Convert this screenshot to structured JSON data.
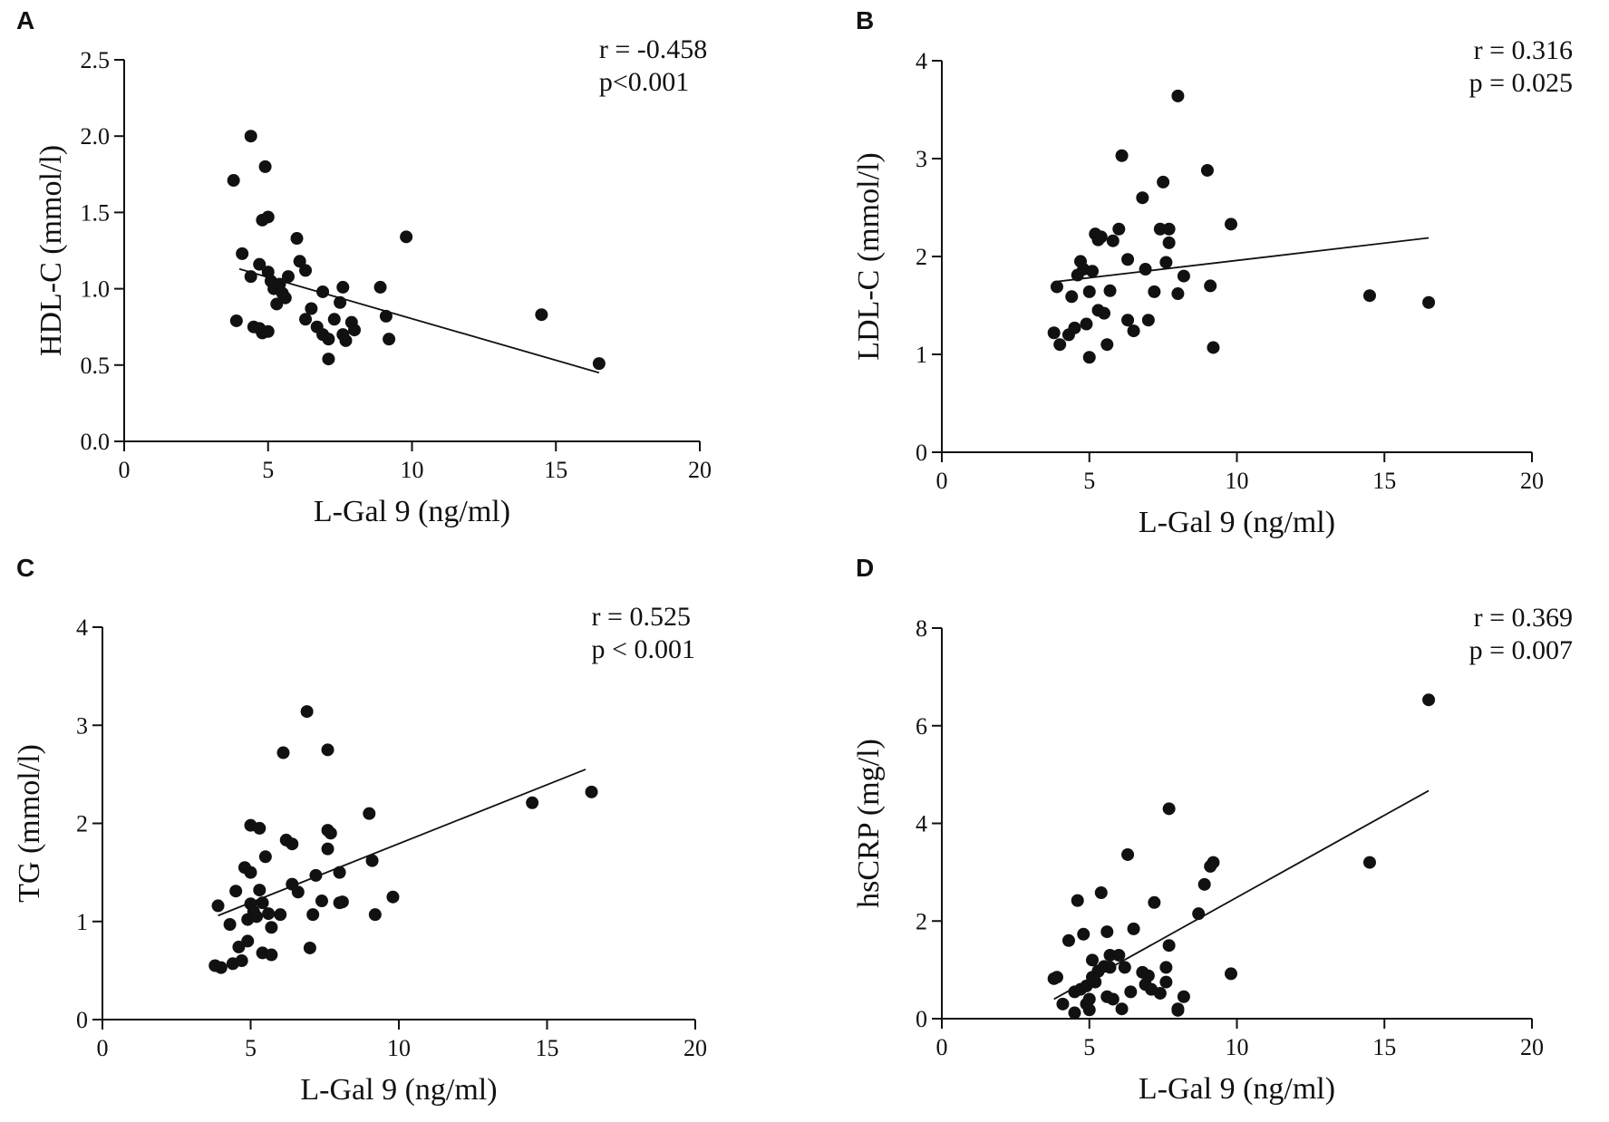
{
  "chart_data": [
    {
      "type": "scatter",
      "panel": "A",
      "xlabel": "L-Gal 9 (ng/ml)",
      "ylabel": "HDL-C (mmol/l)",
      "xlim": [
        0,
        20
      ],
      "ylim": [
        0,
        2.5
      ],
      "xticks": [
        "0",
        "5",
        "10",
        "15",
        "20"
      ],
      "yticks": [
        "0.0",
        "0.5",
        "1.0",
        "1.5",
        "2.0",
        "2.5"
      ],
      "stats": [
        "r = -0.458",
        "p<0.001"
      ],
      "regression": [
        [
          4.0,
          1.13
        ],
        [
          16.5,
          0.45
        ]
      ],
      "points": [
        [
          3.8,
          1.71
        ],
        [
          3.9,
          0.79
        ],
        [
          4.1,
          1.23
        ],
        [
          4.4,
          2.0
        ],
        [
          4.4,
          1.08
        ],
        [
          4.5,
          0.75
        ],
        [
          4.7,
          1.16
        ],
        [
          4.7,
          0.74
        ],
        [
          4.8,
          1.45
        ],
        [
          4.8,
          0.71
        ],
        [
          4.9,
          1.8
        ],
        [
          5.0,
          1.47
        ],
        [
          5.0,
          1.11
        ],
        [
          5.0,
          0.72
        ],
        [
          5.1,
          1.05
        ],
        [
          5.2,
          1.0
        ],
        [
          5.3,
          0.9
        ],
        [
          5.4,
          1.03
        ],
        [
          5.5,
          0.97
        ],
        [
          5.6,
          0.94
        ],
        [
          5.7,
          1.08
        ],
        [
          6.0,
          1.33
        ],
        [
          6.1,
          1.18
        ],
        [
          6.3,
          1.12
        ],
        [
          6.3,
          0.8
        ],
        [
          6.5,
          0.87
        ],
        [
          6.7,
          0.75
        ],
        [
          6.9,
          0.98
        ],
        [
          6.9,
          0.7
        ],
        [
          7.1,
          0.67
        ],
        [
          7.1,
          0.54
        ],
        [
          7.3,
          0.8
        ],
        [
          7.5,
          0.91
        ],
        [
          7.6,
          0.7
        ],
        [
          7.6,
          1.01
        ],
        [
          7.7,
          0.66
        ],
        [
          7.9,
          0.78
        ],
        [
          8.0,
          0.73
        ],
        [
          8.9,
          1.01
        ],
        [
          9.1,
          0.82
        ],
        [
          9.2,
          0.67
        ],
        [
          9.8,
          1.34
        ],
        [
          14.5,
          0.83
        ],
        [
          16.5,
          0.51
        ]
      ]
    },
    {
      "type": "scatter",
      "panel": "B",
      "xlabel": "L-Gal 9 (ng/ml)",
      "ylabel": "LDL-C (mmol/l)",
      "xlim": [
        0,
        20
      ],
      "ylim": [
        0,
        4
      ],
      "xticks": [
        "0",
        "5",
        "10",
        "15",
        "20"
      ],
      "yticks": [
        "0",
        "1",
        "2",
        "3",
        "4"
      ],
      "stats": [
        "r = 0.316",
        "p = 0.025"
      ],
      "regression": [
        [
          3.8,
          1.74
        ],
        [
          16.5,
          2.19
        ]
      ],
      "points": [
        [
          3.8,
          1.22
        ],
        [
          3.9,
          1.69
        ],
        [
          4.0,
          1.1
        ],
        [
          4.3,
          1.2
        ],
        [
          4.4,
          1.59
        ],
        [
          4.5,
          1.27
        ],
        [
          4.6,
          1.81
        ],
        [
          4.7,
          1.95
        ],
        [
          4.8,
          1.87
        ],
        [
          4.9,
          1.31
        ],
        [
          5.0,
          0.97
        ],
        [
          5.0,
          1.64
        ],
        [
          5.1,
          1.85
        ],
        [
          5.2,
          2.23
        ],
        [
          5.3,
          2.17
        ],
        [
          5.3,
          1.45
        ],
        [
          5.4,
          2.2
        ],
        [
          5.5,
          1.42
        ],
        [
          5.6,
          1.1
        ],
        [
          5.7,
          1.65
        ],
        [
          5.8,
          2.16
        ],
        [
          6.0,
          2.28
        ],
        [
          6.1,
          3.03
        ],
        [
          6.3,
          1.97
        ],
        [
          6.3,
          1.35
        ],
        [
          6.5,
          1.24
        ],
        [
          6.8,
          2.6
        ],
        [
          6.9,
          1.87
        ],
        [
          7.0,
          1.35
        ],
        [
          7.2,
          1.64
        ],
        [
          7.4,
          2.28
        ],
        [
          7.5,
          2.76
        ],
        [
          7.6,
          1.94
        ],
        [
          7.7,
          2.14
        ],
        [
          7.7,
          2.28
        ],
        [
          8.0,
          1.62
        ],
        [
          8.0,
          3.64
        ],
        [
          8.2,
          1.8
        ],
        [
          9.0,
          2.88
        ],
        [
          9.1,
          1.7
        ],
        [
          9.2,
          1.07
        ],
        [
          9.8,
          2.33
        ],
        [
          14.5,
          1.6
        ],
        [
          16.5,
          1.53
        ]
      ]
    },
    {
      "type": "scatter",
      "panel": "C",
      "xlabel": "L-Gal 9 (ng/ml)",
      "ylabel": "TG (mmol/l)",
      "xlim": [
        0,
        20
      ],
      "ylim": [
        0,
        4
      ],
      "xticks": [
        "0",
        "5",
        "10",
        "15",
        "20"
      ],
      "yticks": [
        "0",
        "1",
        "2",
        "3",
        "4"
      ],
      "stats": [
        "r = 0.525",
        "p < 0.001"
      ],
      "regression": [
        [
          3.9,
          1.06
        ],
        [
          16.3,
          2.55
        ]
      ],
      "points": [
        [
          3.8,
          0.55
        ],
        [
          3.9,
          1.16
        ],
        [
          4.0,
          0.53
        ],
        [
          4.3,
          0.97
        ],
        [
          4.4,
          0.57
        ],
        [
          4.5,
          1.31
        ],
        [
          4.6,
          0.74
        ],
        [
          4.7,
          0.6
        ],
        [
          4.8,
          1.55
        ],
        [
          4.9,
          1.02
        ],
        [
          4.9,
          0.8
        ],
        [
          5.0,
          1.98
        ],
        [
          5.0,
          1.5
        ],
        [
          5.0,
          1.18
        ],
        [
          5.1,
          1.1
        ],
        [
          5.2,
          1.05
        ],
        [
          5.3,
          1.95
        ],
        [
          5.3,
          1.32
        ],
        [
          5.4,
          1.19
        ],
        [
          5.4,
          0.68
        ],
        [
          5.5,
          1.66
        ],
        [
          5.6,
          1.08
        ],
        [
          5.7,
          0.66
        ],
        [
          5.7,
          0.94
        ],
        [
          6.0,
          1.07
        ],
        [
          6.1,
          2.72
        ],
        [
          6.2,
          1.83
        ],
        [
          6.4,
          1.79
        ],
        [
          6.4,
          1.38
        ],
        [
          6.6,
          1.3
        ],
        [
          6.9,
          3.14
        ],
        [
          7.0,
          0.73
        ],
        [
          7.1,
          1.07
        ],
        [
          7.2,
          1.47
        ],
        [
          7.4,
          1.21
        ],
        [
          7.6,
          1.93
        ],
        [
          7.6,
          1.74
        ],
        [
          7.6,
          2.75
        ],
        [
          7.7,
          1.9
        ],
        [
          8.0,
          1.5
        ],
        [
          8.0,
          1.19
        ],
        [
          8.1,
          1.2
        ],
        [
          9.0,
          2.1
        ],
        [
          9.1,
          1.62
        ],
        [
          9.2,
          1.07
        ],
        [
          9.8,
          1.25
        ],
        [
          14.5,
          2.21
        ],
        [
          16.5,
          2.32
        ]
      ]
    },
    {
      "type": "scatter",
      "panel": "D",
      "xlabel": "L-Gal 9 (ng/ml)",
      "ylabel": "hsCRP (mg/l)",
      "xlim": [
        0,
        20
      ],
      "ylim": [
        0,
        8
      ],
      "xticks": [
        "0",
        "5",
        "10",
        "15",
        "20"
      ],
      "yticks": [
        "0",
        "2",
        "4",
        "6",
        "8"
      ],
      "stats": [
        "r = 0.369",
        "p = 0.007"
      ],
      "regression": [
        [
          3.8,
          0.4
        ],
        [
          16.5,
          4.67
        ]
      ],
      "points": [
        [
          3.8,
          0.82
        ],
        [
          3.9,
          0.85
        ],
        [
          4.1,
          0.3
        ],
        [
          4.3,
          1.6
        ],
        [
          4.5,
          0.55
        ],
        [
          4.5,
          0.12
        ],
        [
          4.6,
          2.42
        ],
        [
          4.7,
          0.6
        ],
        [
          4.8,
          1.73
        ],
        [
          4.9,
          0.67
        ],
        [
          4.9,
          0.3
        ],
        [
          5.0,
          0.4
        ],
        [
          5.0,
          0.18
        ],
        [
          5.1,
          1.2
        ],
        [
          5.1,
          0.85
        ],
        [
          5.2,
          0.75
        ],
        [
          5.3,
          0.98
        ],
        [
          5.3,
          0.97
        ],
        [
          5.4,
          2.58
        ],
        [
          5.5,
          1.07
        ],
        [
          5.6,
          1.78
        ],
        [
          5.6,
          0.45
        ],
        [
          5.7,
          1.3
        ],
        [
          5.7,
          1.05
        ],
        [
          5.8,
          0.4
        ],
        [
          6.0,
          1.3
        ],
        [
          6.1,
          0.2
        ],
        [
          6.2,
          1.05
        ],
        [
          6.3,
          3.36
        ],
        [
          6.4,
          0.55
        ],
        [
          6.5,
          1.84
        ],
        [
          6.8,
          0.95
        ],
        [
          6.9,
          0.7
        ],
        [
          7.0,
          0.88
        ],
        [
          7.1,
          0.6
        ],
        [
          7.2,
          2.38
        ],
        [
          7.4,
          0.52
        ],
        [
          7.6,
          0.75
        ],
        [
          7.6,
          1.05
        ],
        [
          7.7,
          1.5
        ],
        [
          7.7,
          4.3
        ],
        [
          8.0,
          0.17
        ],
        [
          8.0,
          0.2
        ],
        [
          8.2,
          0.45
        ],
        [
          8.7,
          2.15
        ],
        [
          8.9,
          2.75
        ],
        [
          9.1,
          3.12
        ],
        [
          9.2,
          3.2
        ],
        [
          9.8,
          0.92
        ],
        [
          14.5,
          3.2
        ],
        [
          16.5,
          6.53
        ]
      ]
    }
  ]
}
